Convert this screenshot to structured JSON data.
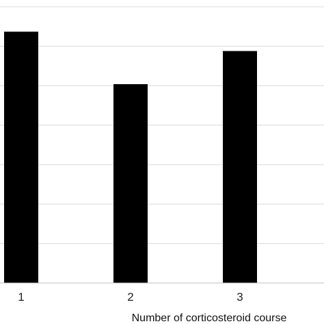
{
  "chart_data": {
    "type": "bar",
    "categories": [
      "1",
      "2",
      "3"
    ],
    "values": [
      0.91,
      0.72,
      0.84
    ],
    "title": "",
    "xlabel": "Number of corticosteroid course",
    "ylabel": "",
    "ylim": [
      0,
      1.0
    ],
    "grid": true,
    "bar_color": "#000000",
    "grid_color": "#d9d9d9"
  }
}
